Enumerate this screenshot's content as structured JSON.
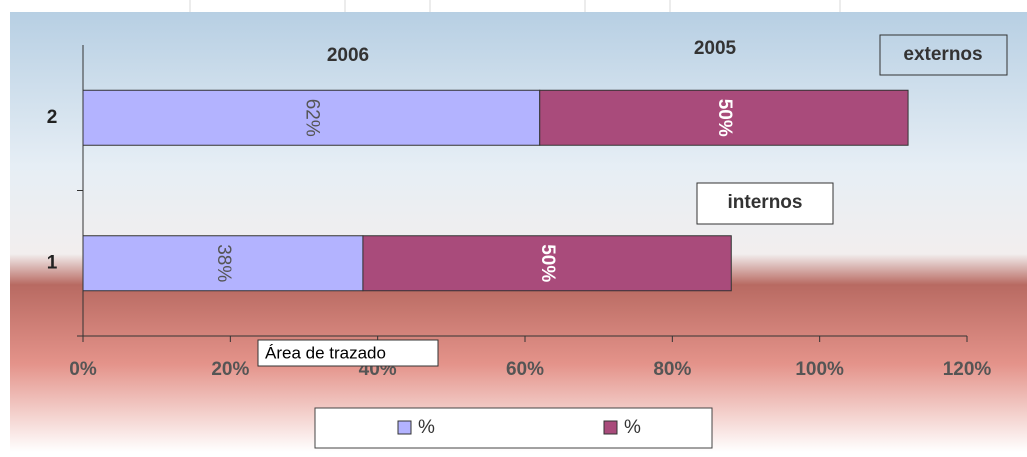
{
  "chart_data": {
    "type": "stacked_bar_horizontal",
    "categories": [
      "1",
      "2"
    ],
    "series": [
      {
        "name": "%",
        "color": "#b3b3ff",
        "values": [
          38,
          62
        ],
        "value_labels": [
          "38%",
          "62%"
        ]
      },
      {
        "name": "%",
        "color": "#a94b7b",
        "values": [
          50,
          50
        ],
        "value_labels": [
          "50%",
          "50%"
        ]
      }
    ],
    "xlim": [
      0,
      120
    ],
    "xticks": [
      {
        "value": 0,
        "label": "0%"
      },
      {
        "value": 20,
        "label": "20%"
      },
      {
        "value": 40,
        "label": "40%"
      },
      {
        "value": 60,
        "label": "60%"
      },
      {
        "value": 80,
        "label": "80%"
      },
      {
        "value": 100,
        "label": "100%"
      },
      {
        "value": 120,
        "label": "120%"
      }
    ],
    "annotations": [
      "2006",
      "2005",
      "externos",
      "internos"
    ],
    "tooltip": "Área de trazado",
    "legend": "bottom"
  }
}
